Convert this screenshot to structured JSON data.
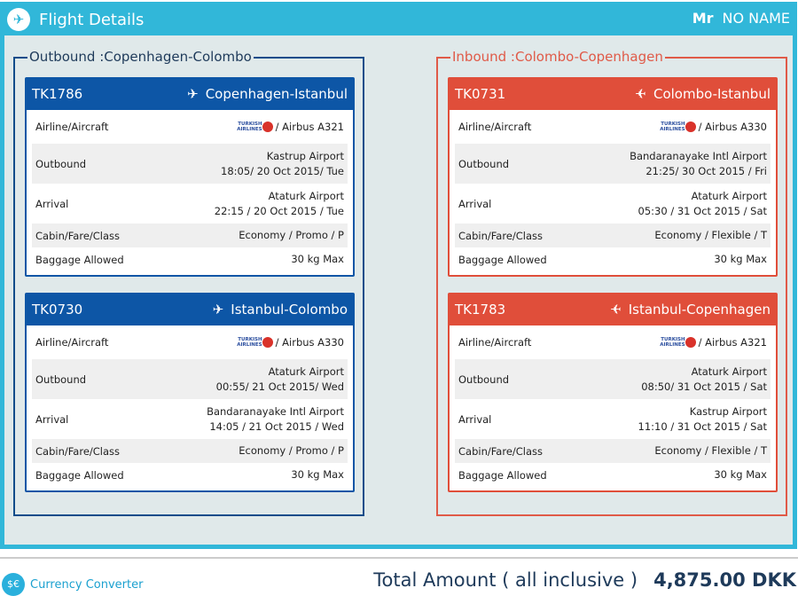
{
  "header": {
    "title": "Flight Details",
    "salutation": "Mr",
    "name": "NO NAME"
  },
  "labels": {
    "airline": "Airline/Aircraft",
    "outbound": "Outbound",
    "arrival": "Arrival",
    "cabin": "Cabin/Fare/Class",
    "baggage": "Baggage Allowed"
  },
  "airline_logo": "TURKISH AIRLINES",
  "colors": {
    "header": "#31b7d9",
    "outbound": "#0d56a6",
    "inbound": "#e04e3a"
  },
  "sections": [
    {
      "title": "Outbound :Copenhagen-Colombo",
      "flights": [
        {
          "number": "TK1786",
          "route": "Copenhagen-Istanbul",
          "aircraft": "/ Airbus A321",
          "dep_airport": "Kastrup Airport",
          "dep_time": "18:05/ 20 Oct 2015/ Tue",
          "arr_airport": "Ataturk Airport",
          "arr_time": "22:15 / 20 Oct 2015 / Tue",
          "cabin": "Economy / Promo / P",
          "baggage": "30 kg Max"
        },
        {
          "number": "TK0730",
          "route": "Istanbul-Colombo",
          "aircraft": "/ Airbus A330",
          "dep_airport": "Ataturk Airport",
          "dep_time": "00:55/ 21 Oct 2015/ Wed",
          "arr_airport": "Bandaranayake Intl Airport",
          "arr_time": "14:05 / 21 Oct 2015 / Wed",
          "cabin": "Economy / Promo / P",
          "baggage": "30 kg Max"
        }
      ]
    },
    {
      "title": "Inbound :Colombo-Copenhagen",
      "flights": [
        {
          "number": "TK0731",
          "route": "Colombo-Istanbul",
          "aircraft": "/ Airbus A330",
          "dep_airport": "Bandaranayake Intl Airport",
          "dep_time": "21:25/ 30 Oct 2015 / Fri",
          "arr_airport": "Ataturk Airport",
          "arr_time": "05:30 / 31 Oct 2015 / Sat",
          "cabin": "Economy / Flexible / T",
          "baggage": "30 kg Max"
        },
        {
          "number": "TK1783",
          "route": "Istanbul-Copenhagen",
          "aircraft": "/ Airbus A321",
          "dep_airport": "Ataturk Airport",
          "dep_time": "08:50/ 31 Oct 2015 / Sat",
          "arr_airport": "Kastrup Airport",
          "arr_time": "11:10 / 31 Oct 2015 / Sat",
          "cabin": "Economy / Flexible / T",
          "baggage": "30 kg Max"
        }
      ]
    }
  ],
  "footer": {
    "currency_converter": "Currency Converter",
    "total_label": "Total Amount ( all inclusive )",
    "total_amount": "4,875.00 DKK"
  }
}
